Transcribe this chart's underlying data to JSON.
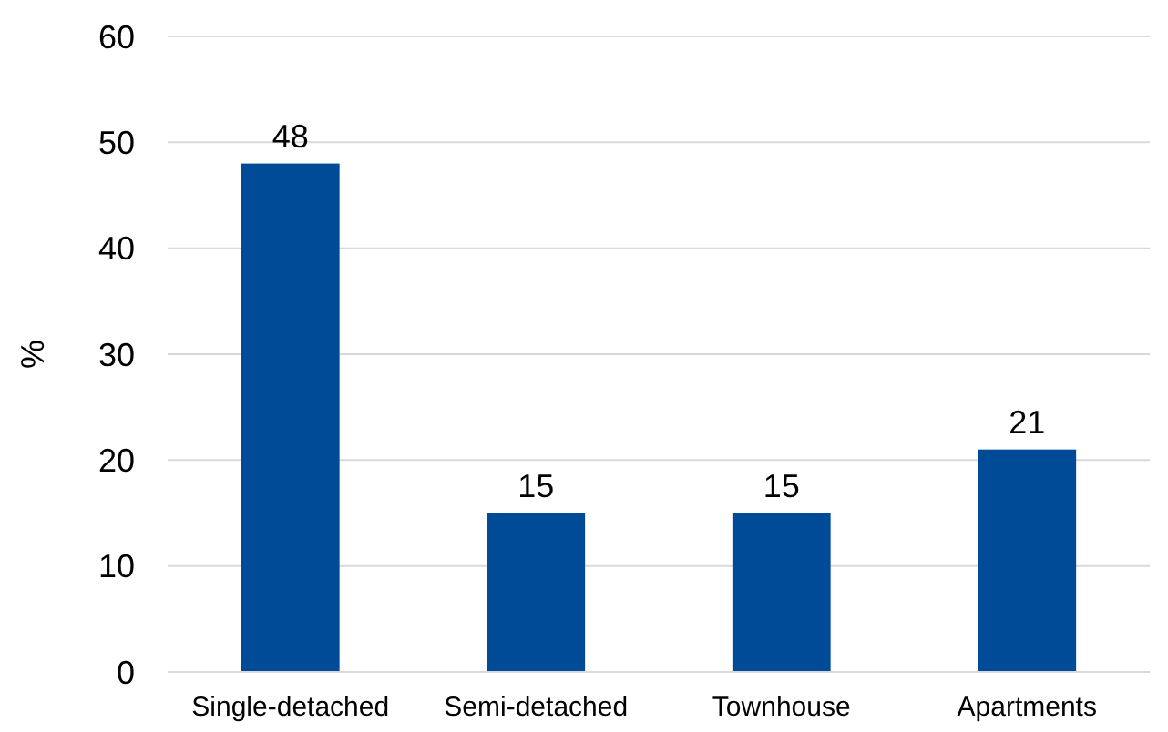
{
  "chart_data": {
    "type": "bar",
    "ylabel": "%",
    "categories": [
      "Single-detached",
      "Semi-detached",
      "Townhouse",
      "Apartments"
    ],
    "values": [
      48,
      15,
      15,
      21
    ],
    "color": "#004b98",
    "ylim": [
      0,
      60
    ],
    "yticks": [
      0,
      10,
      20,
      30,
      40,
      50,
      60
    ],
    "grid": "y",
    "data_labels": true
  }
}
